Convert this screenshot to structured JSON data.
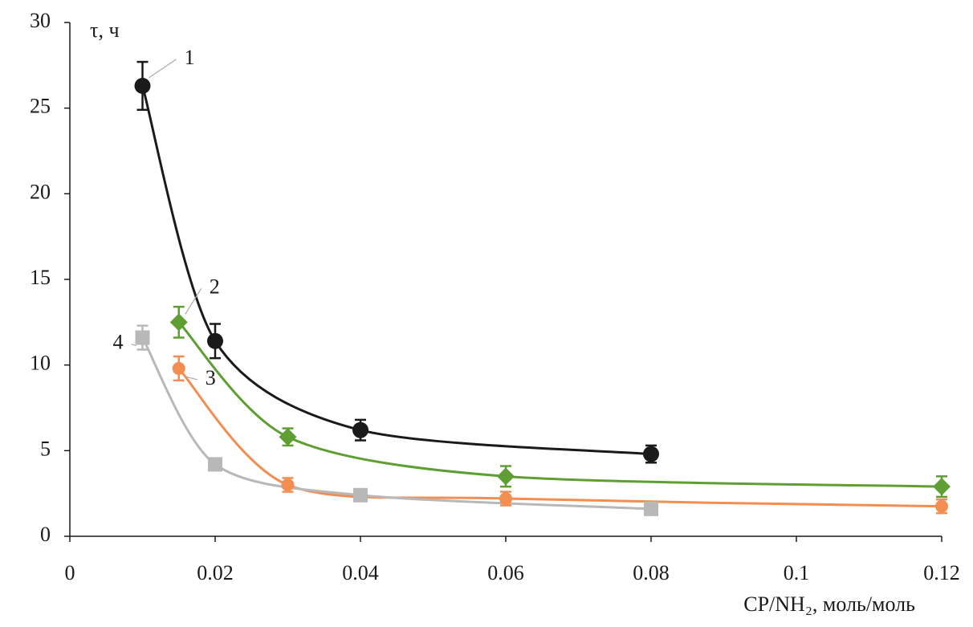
{
  "chart_data": {
    "type": "line",
    "y_label": "τ, ч",
    "x_label": "CP/NH₂, моль/моль",
    "xlim": [
      0,
      0.12
    ],
    "xticks": [
      0,
      0.02,
      0.04,
      0.06,
      0.08,
      0.1,
      0.12
    ],
    "ylim": [
      0,
      30
    ],
    "yticks": [
      0,
      5,
      10,
      15,
      20,
      25,
      30
    ],
    "grid": false,
    "series": [
      {
        "name": "1",
        "color": "#1a1a1a",
        "marker": "circle",
        "x": [
          0.01,
          0.02,
          0.04,
          0.08
        ],
        "values": [
          26.3,
          11.4,
          6.2,
          4.8
        ],
        "errors": [
          1.4,
          1.0,
          0.6,
          0.5
        ]
      },
      {
        "name": "2",
        "color": "#5e9e32",
        "marker": "diamond",
        "x": [
          0.015,
          0.03,
          0.06,
          0.12
        ],
        "values": [
          12.5,
          5.8,
          3.5,
          2.9
        ],
        "errors": [
          0.9,
          0.5,
          0.6,
          0.6
        ]
      },
      {
        "name": "3",
        "color": "#f28e52",
        "marker": "circle",
        "x": [
          0.015,
          0.03,
          0.06,
          0.12
        ],
        "values": [
          9.8,
          3.0,
          2.2,
          1.75
        ],
        "errors": [
          0.7,
          0.4,
          0.4,
          0.4
        ]
      },
      {
        "name": "4",
        "color": "#b8b8b8",
        "marker": "square",
        "x": [
          0.01,
          0.02,
          0.04,
          0.08
        ],
        "values": [
          11.6,
          4.2,
          2.4,
          1.6
        ],
        "errors": [
          0.7,
          0.2,
          0.2,
          0.2
        ]
      }
    ]
  }
}
